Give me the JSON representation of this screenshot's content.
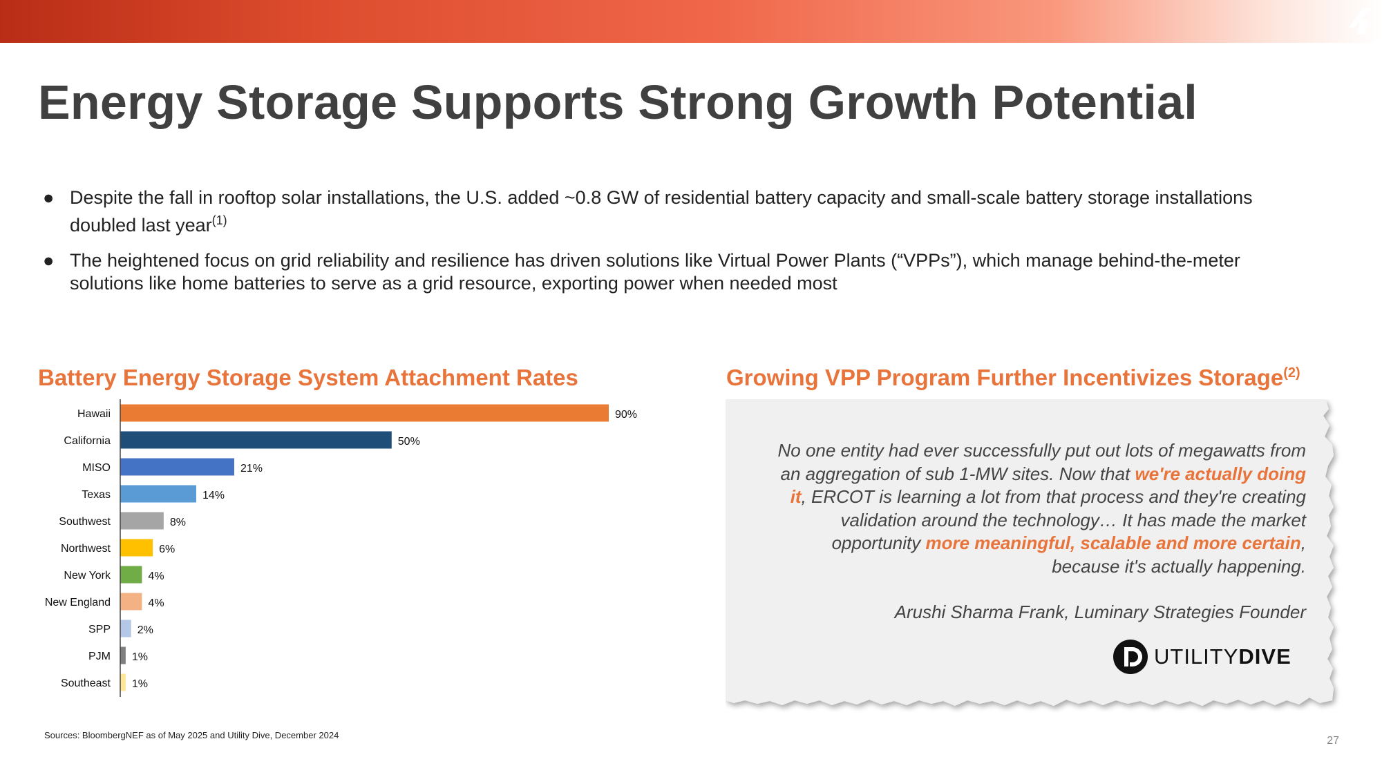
{
  "header": {
    "title": "Energy Storage Supports Strong Growth Potential"
  },
  "bullets": [
    {
      "text": "Despite the fall in rooftop solar installations, the U.S. added ~0.8 GW of residential battery capacity and small-scale battery storage installations doubled last year",
      "footnote": "(1)"
    },
    {
      "text": "The heightened focus on grid reliability and resilience has driven solutions like Virtual Power Plants (“VPPs”), which manage behind-the-meter solutions like home batteries to serve as a grid resource, exporting power when needed most",
      "footnote": ""
    }
  ],
  "left_section": {
    "title": "Battery Energy Storage System Attachment Rates"
  },
  "chart_data": {
    "type": "bar",
    "orientation": "horizontal",
    "title": "Battery Energy Storage System Attachment Rates",
    "xlabel": "",
    "ylabel": "",
    "unit": "%",
    "xlim": [
      0,
      90
    ],
    "grid": false,
    "categories": [
      "Hawaii",
      "California",
      "MISO",
      "Texas",
      "Southwest",
      "Northwest",
      "New York",
      "New England",
      "SPP",
      "PJM",
      "Southeast"
    ],
    "values": [
      90,
      50,
      21,
      14,
      8,
      6,
      4,
      4,
      2,
      1,
      1
    ],
    "value_labels": [
      "90%",
      "50%",
      "21%",
      "14%",
      "8%",
      "6%",
      "4%",
      "4%",
      "2%",
      "1%",
      "1%"
    ],
    "colors": [
      "#e97b32",
      "#1f4e79",
      "#4472c4",
      "#5b9bd5",
      "#a5a5a5",
      "#ffc000",
      "#70ad47",
      "#f4b183",
      "#b4c7e7",
      "#7f7f7f",
      "#ffe699"
    ]
  },
  "right_section": {
    "title": "Growing VPP Program Further Incentivizes Storage",
    "footnote": "(2)",
    "quote": {
      "p1": "No one entity had ever successfully put out lots of megawatts from an aggregation of sub 1-MW sites. Now that ",
      "h1": "we're actually doing it",
      "p2": ", ERCOT is learning a lot from that process and they're creating validation around the technology… It has made the market opportunity ",
      "h2": "more meaningful, scalable and more certain",
      "p3": ", because it's actually happening."
    },
    "attribution": "Arushi Sharma Frank, Luminary Strategies Founder",
    "logo": {
      "light": "UTILITY",
      "bold": "DIVE"
    }
  },
  "footer": {
    "sources": "Sources: BloombergNEF as of May 2025 and Utility Dive, December 2024",
    "page_number": "27"
  },
  "colors": {
    "accent": "#e8743b",
    "title": "#404040"
  }
}
